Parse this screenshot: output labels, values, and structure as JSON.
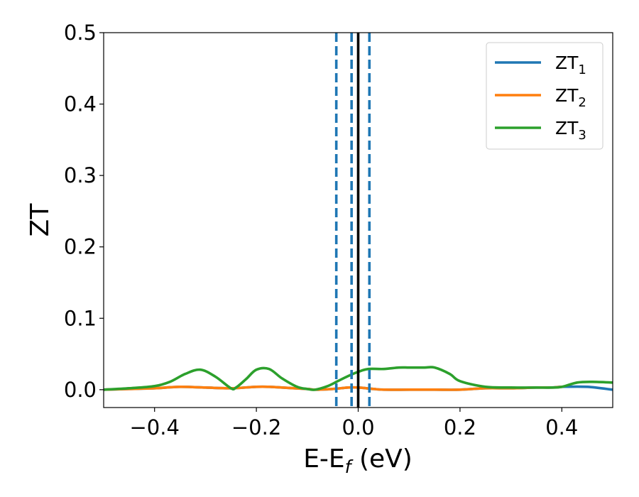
{
  "chart_data": {
    "type": "line",
    "xlabel": "E-E",
    "xlabel_sub": "f",
    "xlabel_unit": "(eV)",
    "ylabel": "ZT",
    "xlim": [
      -0.5,
      0.5
    ],
    "ylim": [
      -0.025,
      0.5
    ],
    "xticks": [
      -0.4,
      -0.2,
      0.0,
      0.2,
      0.4
    ],
    "xtick_labels": [
      "−0.4",
      "−0.2",
      "0.0",
      "0.2",
      "0.4"
    ],
    "yticks": [
      0.0,
      0.1,
      0.2,
      0.3,
      0.4,
      0.5
    ],
    "ytick_labels": [
      "0.0",
      "0.1",
      "0.2",
      "0.3",
      "0.4",
      "0.5"
    ],
    "grid": false,
    "legend_position": "top-right",
    "series": [
      {
        "name": "ZT",
        "name_sub": "1",
        "color": "#1f77b4",
        "x": [
          -0.5,
          -0.45,
          -0.4,
          -0.35,
          -0.3,
          -0.25,
          -0.2,
          -0.175,
          -0.15,
          -0.1,
          -0.085,
          -0.05,
          -0.02,
          0.0,
          0.03,
          0.05,
          0.1,
          0.15,
          0.2,
          0.25,
          0.3,
          0.35,
          0.38,
          0.4,
          0.45,
          0.5
        ],
        "y": [
          0.0,
          0.001,
          0.002,
          0.004,
          0.003,
          0.002,
          0.004,
          0.004,
          0.003,
          0.001,
          0.0,
          0.001,
          0.003,
          0.003,
          0.001,
          0.0,
          0.0,
          0.0,
          0.0,
          0.002,
          0.002,
          0.003,
          0.003,
          0.004,
          0.004,
          0.0
        ]
      },
      {
        "name": "ZT",
        "name_sub": "2",
        "color": "#ff7f0e",
        "x": [
          -0.5,
          -0.45,
          -0.4,
          -0.35,
          -0.3,
          -0.25,
          -0.2,
          -0.175,
          -0.15,
          -0.1,
          -0.085,
          -0.05,
          -0.02,
          0.0,
          0.03,
          0.05,
          0.1,
          0.15,
          0.2,
          0.25,
          0.3,
          0.35,
          0.38,
          0.4
        ],
        "y": [
          0.0,
          0.001,
          0.002,
          0.004,
          0.003,
          0.002,
          0.004,
          0.004,
          0.003,
          0.001,
          0.0,
          0.001,
          0.003,
          0.003,
          0.001,
          0.0,
          0.0,
          0.0,
          0.0,
          0.002,
          0.002,
          0.003,
          0.003,
          0.004
        ]
      },
      {
        "name": "ZT",
        "name_sub": "3",
        "color": "#2ca02c",
        "x": [
          -0.5,
          -0.45,
          -0.4,
          -0.37,
          -0.34,
          -0.31,
          -0.28,
          -0.25,
          -0.24,
          -0.22,
          -0.2,
          -0.175,
          -0.15,
          -0.12,
          -0.1,
          -0.085,
          -0.06,
          -0.04,
          -0.02,
          0.0,
          0.02,
          0.05,
          0.08,
          0.1,
          0.13,
          0.15,
          0.18,
          0.2,
          0.25,
          0.3,
          0.35,
          0.38,
          0.4,
          0.43,
          0.46,
          0.5
        ],
        "y": [
          0.0,
          0.002,
          0.005,
          0.011,
          0.022,
          0.028,
          0.018,
          0.002,
          0.003,
          0.015,
          0.028,
          0.029,
          0.016,
          0.004,
          0.001,
          0.0,
          0.005,
          0.012,
          0.019,
          0.025,
          0.029,
          0.029,
          0.031,
          0.031,
          0.031,
          0.031,
          0.022,
          0.012,
          0.004,
          0.003,
          0.003,
          0.003,
          0.004,
          0.01,
          0.011,
          0.01
        ]
      }
    ],
    "vlines": [
      {
        "x": -0.043,
        "style": "dashed",
        "color": "#1f77b4"
      },
      {
        "x": -0.013,
        "style": "dashed",
        "color": "#1f77b4"
      },
      {
        "x": 0.0,
        "style": "solid",
        "color": "#000000"
      },
      {
        "x": 0.022,
        "style": "dashed",
        "color": "#1f77b4"
      }
    ]
  }
}
